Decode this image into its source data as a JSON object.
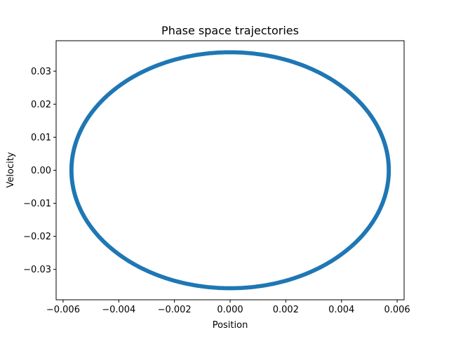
{
  "chart_data": {
    "type": "scatter",
    "title": "Phase space trajectories",
    "xlabel": "Position",
    "ylabel": "Velocity",
    "xlim": [
      -0.00625,
      0.00625
    ],
    "ylim": [
      -0.0392,
      0.0392
    ],
    "grid": false,
    "x_ticks": [
      -0.006,
      -0.004,
      -0.002,
      0.0,
      0.002,
      0.004,
      0.006
    ],
    "x_tick_labels": [
      "−0.006",
      "−0.004",
      "−0.002",
      "0.000",
      "0.002",
      "0.004",
      "0.006"
    ],
    "y_ticks": [
      -0.03,
      -0.02,
      -0.01,
      0.0,
      0.01,
      0.02,
      0.03
    ],
    "y_tick_labels": [
      "−0.03",
      "−0.02",
      "−0.01",
      "0.00",
      "0.01",
      "0.02",
      "0.03"
    ],
    "series": [
      {
        "color": "#1f77b4",
        "shape": "ellipse",
        "center": [
          0.0,
          0.0
        ],
        "x_amplitude": 0.0057,
        "y_amplitude": 0.0357,
        "points": 600
      }
    ]
  }
}
